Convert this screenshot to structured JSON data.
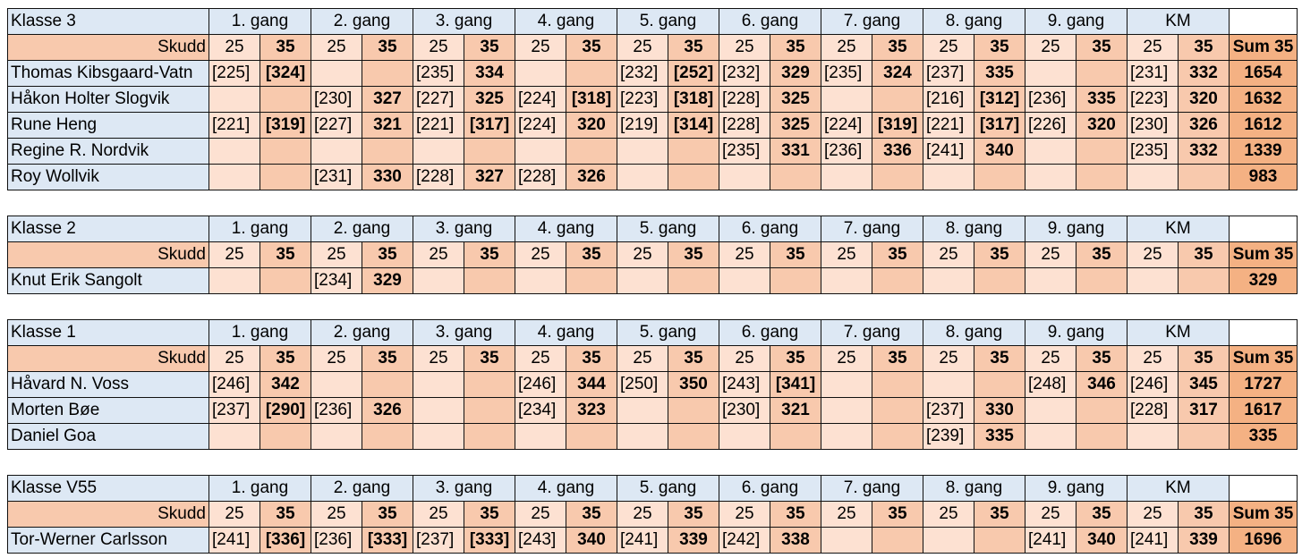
{
  "gang_headers": [
    "1. gang",
    "2. gang",
    "3. gang",
    "4. gang",
    "5. gang",
    "6. gang",
    "7. gang",
    "8. gang",
    "9. gang",
    "KM"
  ],
  "skudd_label": "Skudd",
  "shot_counts": [
    "25",
    "35"
  ],
  "sum_label": "Sum 35",
  "classes": [
    {
      "name": "Klasse 3",
      "athletes": [
        {
          "name": "Thomas Kibsgaard-Vatn",
          "cells": [
            "[225]",
            "[324]",
            "",
            "",
            "[235]",
            "334",
            "",
            "",
            "[232]",
            "[252]",
            "[232]",
            "329",
            "[235]",
            "324",
            "[237]",
            "335",
            "",
            "",
            "[231]",
            "332"
          ],
          "sum": "1654"
        },
        {
          "name": "Håkon Holter Slogvik",
          "cells": [
            "",
            "",
            "[230]",
            "327",
            "[227]",
            "325",
            "[224]",
            "[318]",
            "[223]",
            "[318]",
            "[228]",
            "325",
            "",
            "",
            "[216]",
            "[312]",
            "[236]",
            "335",
            "[223]",
            "320"
          ],
          "sum": "1632"
        },
        {
          "name": "Rune Heng",
          "cells": [
            "[221]",
            "[319]",
            "[227]",
            "321",
            "[221]",
            "[317]",
            "[224]",
            "320",
            "[219]",
            "[314]",
            "[228]",
            "325",
            "[224]",
            "[319]",
            "[221]",
            "[317]",
            "[226]",
            "320",
            "[230]",
            "326"
          ],
          "sum": "1612"
        },
        {
          "name": "Regine R. Nordvik",
          "cells": [
            "",
            "",
            "",
            "",
            "",
            "",
            "",
            "",
            "",
            "",
            "[235]",
            "331",
            "[236]",
            "336",
            "[241]",
            "340",
            "",
            "",
            "[235]",
            "332"
          ],
          "sum": "1339"
        },
        {
          "name": "Roy Wollvik",
          "cells": [
            "",
            "",
            "[231]",
            "330",
            "[228]",
            "327",
            "[228]",
            "326",
            "",
            "",
            "",
            "",
            "",
            "",
            "",
            "",
            "",
            "",
            "",
            ""
          ],
          "sum": "983"
        }
      ]
    },
    {
      "name": "Klasse 2",
      "athletes": [
        {
          "name": "Knut Erik Sangolt",
          "cells": [
            "",
            "",
            "[234]",
            "329",
            "",
            "",
            "",
            "",
            "",
            "",
            "",
            "",
            "",
            "",
            "",
            "",
            "",
            "",
            "",
            ""
          ],
          "sum": "329"
        }
      ]
    },
    {
      "name": "Klasse 1",
      "athletes": [
        {
          "name": "Håvard N. Voss",
          "cells": [
            "[246]",
            "342",
            "",
            "",
            "",
            "",
            "[246]",
            "344",
            "[250]",
            "350",
            "[243]",
            "[341]",
            "",
            "",
            "",
            "",
            "[248]",
            "346",
            "[246]",
            "345"
          ],
          "sum": "1727"
        },
        {
          "name": "Morten Bøe",
          "cells": [
            "[237]",
            "[290]",
            "[236]",
            "326",
            "",
            "",
            "[234]",
            "323",
            "",
            "",
            "[230]",
            "321",
            "",
            "",
            "[237]",
            "330",
            "",
            "",
            "[228]",
            "317"
          ],
          "sum": "1617"
        },
        {
          "name": "Daniel Goa",
          "cells": [
            "",
            "",
            "",
            "",
            "",
            "",
            "",
            "",
            "",
            "",
            "",
            "",
            "",
            "",
            "[239]",
            "335",
            "",
            "",
            "",
            ""
          ],
          "sum": "335"
        }
      ]
    },
    {
      "name": "Klasse V55",
      "athletes": [
        {
          "name": "Tor-Werner Carlsson",
          "cells": [
            "[241]",
            "[336]",
            "[236]",
            "[333]",
            "[237]",
            "[333]",
            "[243]",
            "340",
            "[241]",
            "339",
            "[242]",
            "338",
            "",
            "",
            "",
            "",
            "[241]",
            "340",
            "[241]",
            "339"
          ],
          "sum": "1696"
        }
      ]
    }
  ]
}
